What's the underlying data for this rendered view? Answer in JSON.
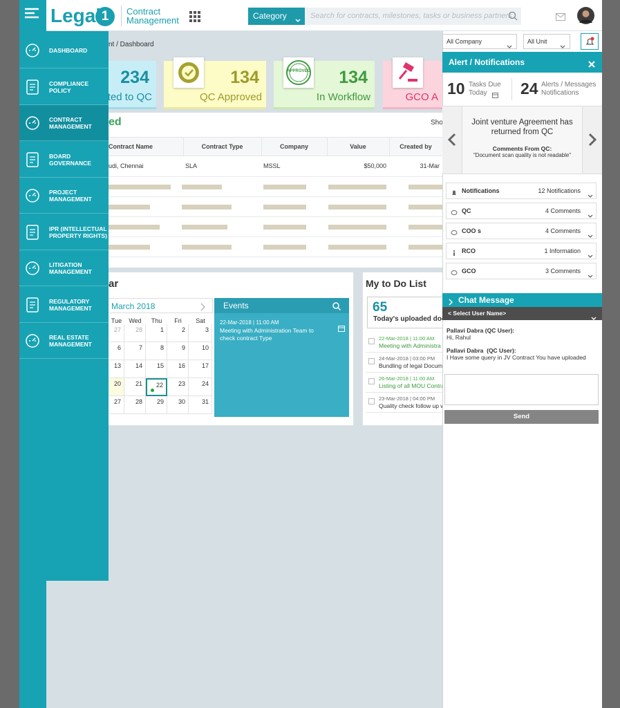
{
  "header": {
    "logo": "Legal",
    "logo_badge": "1",
    "product": [
      "Contract",
      "Management"
    ],
    "category": "Category",
    "search_placeholder": "Search for contracts, milestones, tasks or business partners"
  },
  "menu": [
    "DASHBOARD",
    "COMPLIANCE POLICY",
    "CONTRACT MANAGEMENT",
    "BOARD GOVERNANCE",
    "PROJECT MANAGEMENT",
    "IPR (INTELLECTUAL PROPERTY RIGHTS)",
    "LITIGATION MANAGEMENT",
    "REGULATORY MANAGEMENT",
    "REAL ESTATE MANAGEMENT"
  ],
  "breadcrumb": "nt / Dashboard",
  "filters": [
    "All Company",
    "All Unit"
  ],
  "cards": [
    {
      "value": 234,
      "label": "tted to QC"
    },
    {
      "value": 134,
      "label": "QC Approved"
    },
    {
      "value": 134,
      "label": "In Workflow",
      "icon_text": "APPROVED"
    },
    {
      "label": "GCO A"
    }
  ],
  "table": {
    "title": "ed",
    "show": "Sho",
    "headers": [
      "Contract Name",
      "Contract Type",
      "Company",
      "Value",
      "Created by"
    ],
    "rows": [
      [
        "udi, Chennai",
        "SLA",
        "MSSL",
        "$50,000",
        "31-Mar"
      ]
    ]
  },
  "calendar": {
    "title": "ar",
    "month": "March 2018",
    "days": [
      "Tue",
      "Wed",
      "Thu",
      "Fri",
      "Sat"
    ],
    "weeks": [
      [
        27,
        28,
        1,
        2,
        3
      ],
      [
        6,
        7,
        8,
        9,
        10
      ],
      [
        13,
        14,
        15,
        16,
        17
      ],
      [
        20,
        21,
        22,
        23,
        24
      ],
      [
        27,
        28,
        29,
        30,
        31
      ]
    ],
    "events_title": "Events",
    "event": {
      "time": "22-Mar-2018 | 11:00 AM",
      "text": "Meeting with Administration Team to check contract Type"
    }
  },
  "todo": {
    "title": "My to Do List",
    "count": 65,
    "count_label": "Today's uploaded docu",
    "items": [
      {
        "time": "22-Mar-2018 | 11:00 AM",
        "text": "Meeting with Administra"
      },
      {
        "time": "24-Mar-2018 | 03:00 PM",
        "text": "Bundling of legal Docum"
      },
      {
        "time": "26-Mar-2018 | 11:00 AM",
        "text": "Listing of all MOU Contra"
      },
      {
        "time": "23-Mar-2018 | 04:00 PM",
        "text": "Quality check follow up w"
      }
    ]
  },
  "panel": {
    "title": "Alert / Notifications",
    "tasks": {
      "value": 10,
      "label": [
        "Tasks Due",
        "Today"
      ]
    },
    "alerts": {
      "value": 24,
      "label": [
        "Alerts / Messages",
        "Notifications"
      ]
    },
    "carousel": {
      "text": "Joint venture Agreement has returned from QC",
      "comment_title": "Comments From QC:",
      "comment": "\"Document scan quality is not readable\""
    },
    "list": [
      {
        "label": "Notifications",
        "count": "12 Notifications"
      },
      {
        "label": "QC",
        "count": "4 Comments"
      },
      {
        "label": "COO s",
        "count": "4 Comments"
      },
      {
        "label": "RCO",
        "count": "1 Information"
      },
      {
        "label": "GCO",
        "count": "3 Comments"
      }
    ],
    "chat": {
      "title": "Chat Message",
      "select": "< Select User Name>",
      "messages": [
        {
          "user": "Pallavi Dabra (QC User):",
          "text": "Hi, Rahul"
        },
        {
          "user": "Pallavi Dabra  (QC User):",
          "text": "I Have some query in JV Contract You have uploaded"
        }
      ],
      "send": "Send"
    }
  }
}
